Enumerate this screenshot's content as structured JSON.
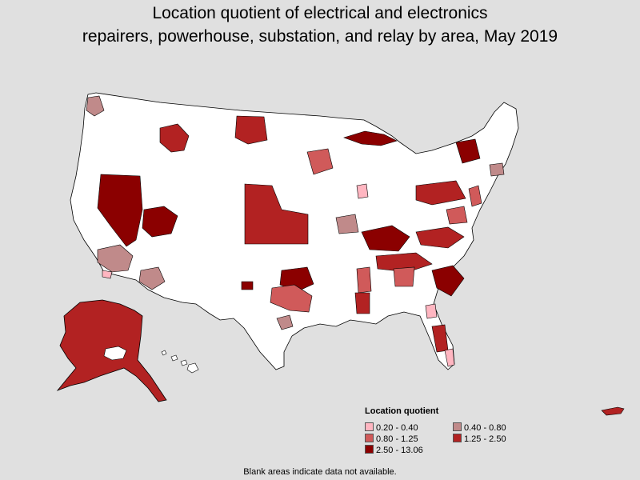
{
  "title": "Location quotient of electrical and electronics\nrepairers, powerhouse, substation, and relay by area, May 2019",
  "legend": {
    "title": "Location quotient",
    "items": [
      {
        "label": "0.20 - 0.40",
        "color": "#ffb6c1"
      },
      {
        "label": "0.40 - 0.80",
        "color": "#c08a8a"
      },
      {
        "label": "0.80 - 1.25",
        "color": "#d05a5a"
      },
      {
        "label": "1.25 - 2.50",
        "color": "#b22222"
      },
      {
        "label": "2.50 - 13.06",
        "color": "#8b0000"
      }
    ]
  },
  "note": "Blank areas indicate data not available.",
  "colors": {
    "background": "#e0e0e0",
    "blank": "#ffffff",
    "border": "#000000"
  }
}
